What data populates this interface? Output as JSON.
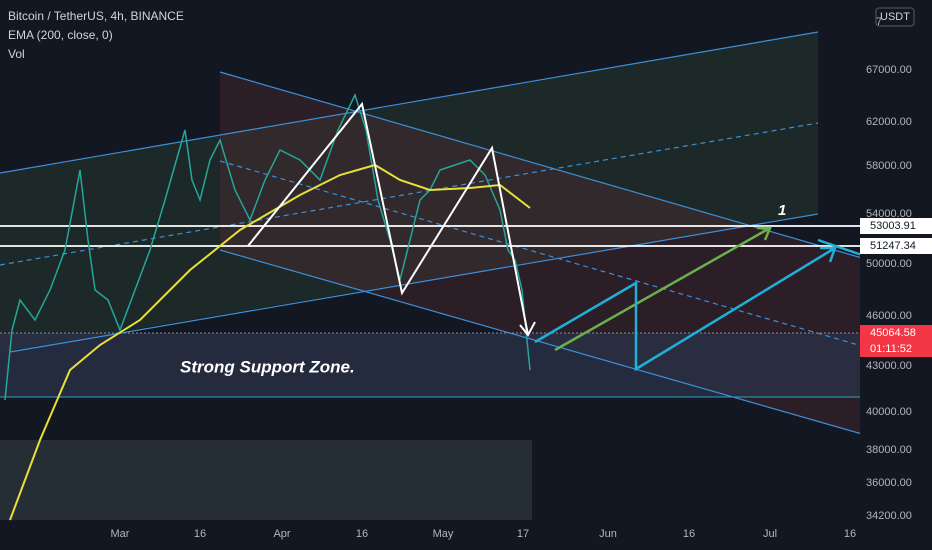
{
  "header": {
    "symbol": "Bitcoin / TetherUS, 4h, BINANCE",
    "indicator": "EMA (200, close, 0)",
    "volume": "Vol"
  },
  "currency": "USDT",
  "price_axis": [
    "7",
    "67000.00",
    "62000.00",
    "58000.00",
    "54000.00",
    "50000.00",
    "46000.00",
    "43000.00",
    "40000.00",
    "38000.00",
    "36000.00",
    "34200.00"
  ],
  "time_axis": [
    "Mar",
    "16",
    "Apr",
    "16",
    "May",
    "17",
    "Jun",
    "16",
    "Jul",
    "16"
  ],
  "price_tags": [
    "53003.91",
    "51247.34",
    "45064.58",
    "01:11:52"
  ],
  "annotations": {
    "support": "Strong Support  Zone.",
    "target": "1"
  }
}
